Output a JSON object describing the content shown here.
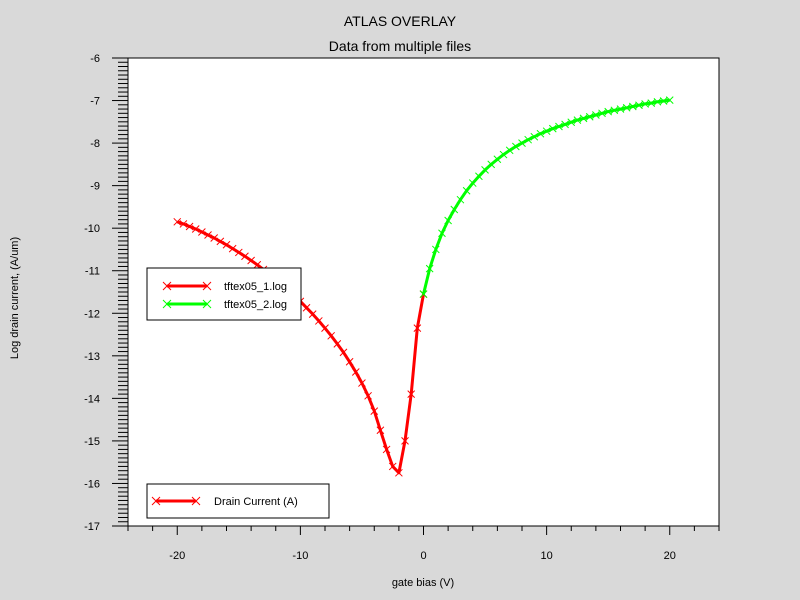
{
  "chart_data": {
    "type": "line",
    "title": "ATLAS OVERLAY",
    "subtitle": "Data from multiple files",
    "xlabel": "gate bias (V)",
    "ylabel": "Log drain current, (A/um)",
    "xlim": [
      -24,
      24
    ],
    "ylim": [
      -17,
      -6
    ],
    "xticks": [
      -20,
      -10,
      0,
      10,
      20
    ],
    "yticks": [
      -6,
      -7,
      -8,
      -9,
      -10,
      -11,
      -12,
      -13,
      -14,
      -15,
      -16,
      -17
    ],
    "grid": false,
    "series": [
      {
        "name": "tftex05_1.log",
        "color": "#ff0000",
        "marker": "x",
        "x": [
          -20,
          -19.5,
          -19,
          -18.5,
          -18,
          -17.5,
          -17,
          -16.5,
          -16,
          -15.5,
          -15,
          -14.5,
          -14,
          -13.5,
          -13,
          -12.5,
          -12,
          -11.5,
          -11,
          -10.5,
          -10,
          -9.5,
          -9,
          -8.5,
          -8,
          -7.5,
          -7,
          -6.5,
          -6,
          -5.5,
          -5,
          -4.5,
          -4,
          -3.5,
          -3,
          -2.5,
          -2,
          -1.5,
          -1,
          -0.5,
          0
        ],
        "y": [
          -9.85,
          -9.9,
          -9.96,
          -10.02,
          -10.09,
          -10.16,
          -10.23,
          -10.31,
          -10.39,
          -10.48,
          -10.57,
          -10.66,
          -10.76,
          -10.86,
          -10.97,
          -11.08,
          -11.2,
          -11.32,
          -11.45,
          -11.58,
          -11.72,
          -11.87,
          -12.02,
          -12.18,
          -12.35,
          -12.53,
          -12.72,
          -12.92,
          -13.14,
          -13.38,
          -13.64,
          -13.94,
          -14.3,
          -14.75,
          -15.2,
          -15.6,
          -15.75,
          -15.0,
          -13.9,
          -12.35,
          -11.55
        ]
      },
      {
        "name": "tftex05_2.log",
        "color": "#00ff00",
        "marker": "x",
        "x": [
          0,
          0.5,
          1,
          1.5,
          2,
          2.5,
          3,
          3.5,
          4,
          4.5,
          5,
          5.5,
          6,
          6.5,
          7,
          7.5,
          8,
          8.5,
          9,
          9.5,
          10,
          10.5,
          11,
          11.5,
          12,
          12.5,
          13,
          13.5,
          14,
          14.5,
          15,
          15.5,
          16,
          16.5,
          17,
          17.5,
          18,
          18.5,
          19,
          19.5,
          20
        ],
        "y": [
          -11.55,
          -10.95,
          -10.5,
          -10.12,
          -9.82,
          -9.56,
          -9.33,
          -9.12,
          -8.94,
          -8.78,
          -8.63,
          -8.5,
          -8.38,
          -8.27,
          -8.17,
          -8.08,
          -8.0,
          -7.92,
          -7.85,
          -7.78,
          -7.72,
          -7.66,
          -7.61,
          -7.56,
          -7.51,
          -7.46,
          -7.42,
          -7.38,
          -7.34,
          -7.3,
          -7.26,
          -7.23,
          -7.2,
          -7.17,
          -7.14,
          -7.11,
          -7.08,
          -7.06,
          -7.03,
          -7.01,
          -6.99
        ]
      }
    ],
    "legend_files": {
      "placement": "middle-left",
      "entries": [
        {
          "label": "tftex05_1.log",
          "color": "#ff0000"
        },
        {
          "label": "tftex05_2.log",
          "color": "#00ff00"
        }
      ]
    },
    "legend_quantity": {
      "placement": "bottom-left",
      "entries": [
        {
          "label": "Drain Current (A)",
          "color": "#ff0000"
        }
      ]
    }
  }
}
